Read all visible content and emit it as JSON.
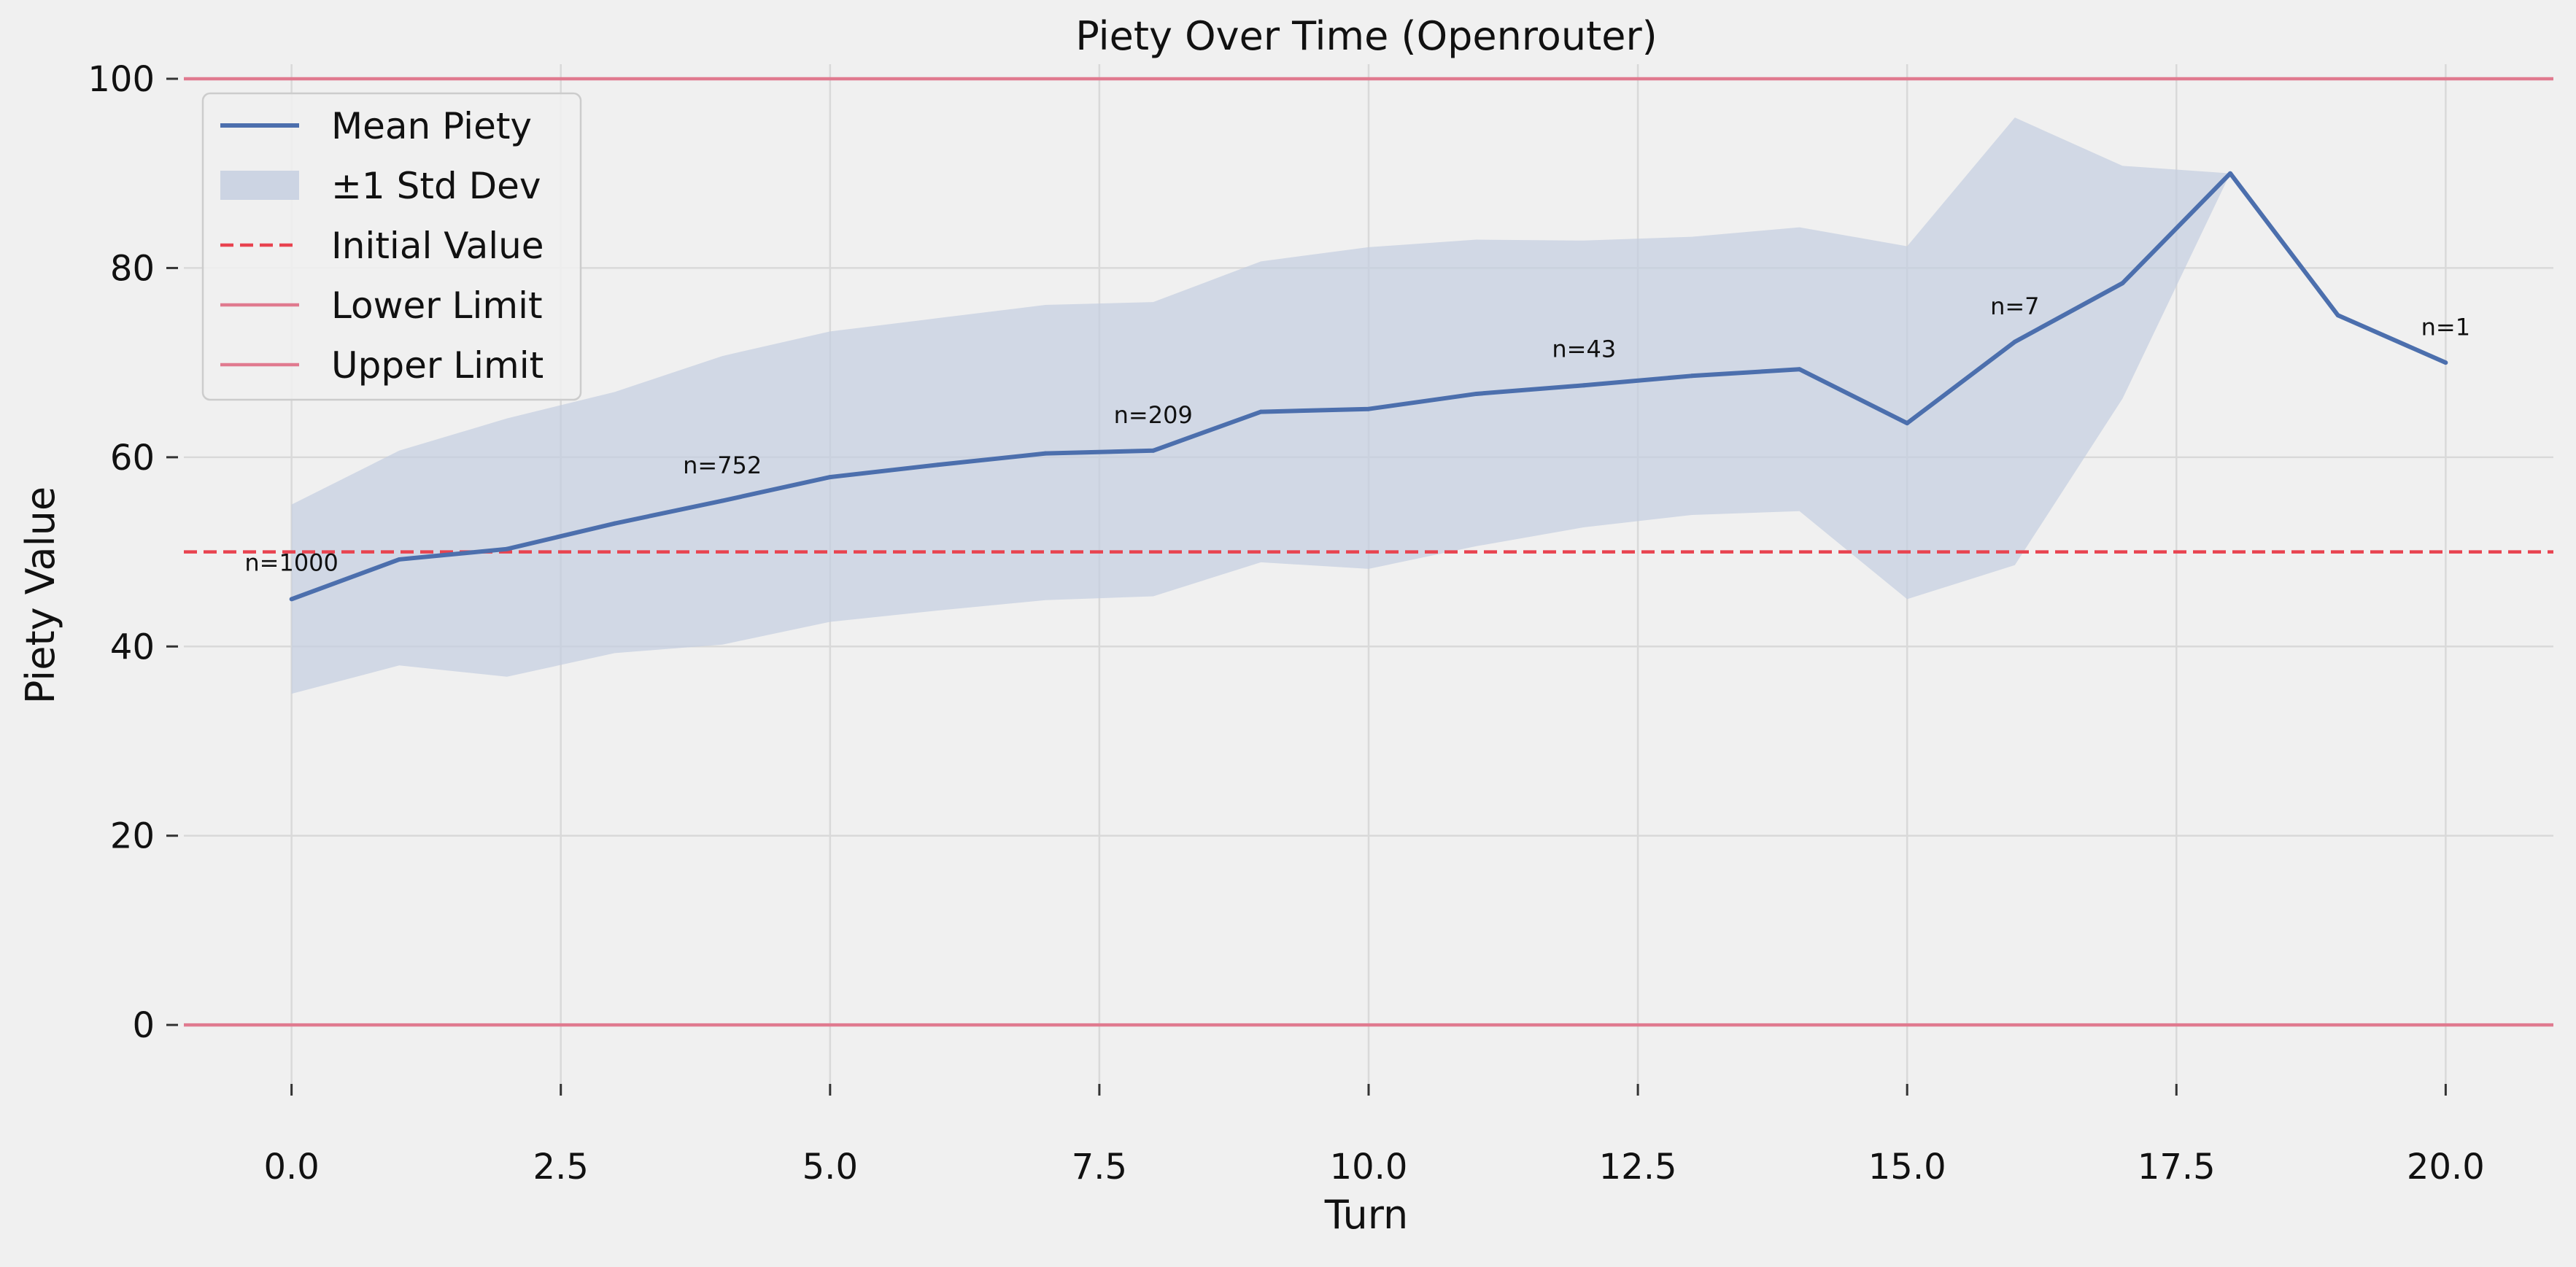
{
  "chart_data": {
    "type": "line",
    "title": "Piety Over Time (Openrouter)",
    "xlabel": "Turn",
    "ylabel": "Piety Value",
    "xlim": [
      -1,
      21
    ],
    "ylim": [
      -5,
      100
    ],
    "xticks": [
      0.0,
      2.5,
      5.0,
      7.5,
      10.0,
      12.5,
      15.0,
      17.5,
      20.0
    ],
    "xtick_labels": [
      "0.0",
      "2.5",
      "5.0",
      "7.5",
      "10.0",
      "12.5",
      "15.0",
      "17.5",
      "20.0"
    ],
    "yticks": [
      0,
      20,
      40,
      60,
      80,
      100
    ],
    "ytick_labels": [
      "0",
      "20",
      "40",
      "60",
      "80",
      "100"
    ],
    "grid": true,
    "legend_position": "top-left",
    "series": [
      {
        "name": "Mean Piety",
        "kind": "line",
        "color": "#4c6fad",
        "x": [
          0,
          1,
          2,
          3,
          4,
          5,
          6,
          7,
          8,
          9,
          10,
          11,
          12,
          13,
          14,
          15,
          16,
          17,
          18,
          19,
          20
        ],
        "y": [
          45.0,
          49.2,
          50.3,
          53.0,
          55.4,
          57.9,
          59.2,
          60.4,
          60.7,
          64.8,
          65.1,
          66.7,
          67.6,
          68.6,
          69.3,
          63.6,
          72.2,
          78.4,
          90.0,
          75.0,
          70.0
        ]
      },
      {
        "name": "±1 Std Dev",
        "kind": "band",
        "color": "#c3cde0",
        "x": [
          0,
          1,
          2,
          3,
          4,
          5,
          6,
          7,
          8,
          9,
          10,
          11,
          12,
          13,
          14,
          15,
          16,
          17,
          18
        ],
        "lower": [
          35.0,
          38.0,
          36.8,
          39.3,
          40.2,
          42.6,
          43.8,
          44.9,
          45.3,
          48.9,
          48.2,
          50.6,
          52.6,
          53.9,
          54.3,
          45.0,
          48.6,
          66.2,
          90.0
        ],
        "upper": [
          55.0,
          60.7,
          64.1,
          66.9,
          70.7,
          73.3,
          74.7,
          76.1,
          76.4,
          80.7,
          82.2,
          83.0,
          82.9,
          83.3,
          84.3,
          82.3,
          95.9,
          90.8,
          90.0
        ]
      },
      {
        "name": "Initial Value",
        "kind": "hline",
        "color": "#e8434f",
        "style": "dashed",
        "y": 50
      },
      {
        "name": "Lower Limit",
        "kind": "hline",
        "color": "#e07a8f",
        "style": "solid",
        "y": 0
      },
      {
        "name": "Upper Limit",
        "kind": "hline",
        "color": "#e07a8f",
        "style": "solid",
        "y": 100
      }
    ],
    "annotations": [
      {
        "text": "n=1000",
        "x": 0,
        "y": 48.0
      },
      {
        "text": "n=752",
        "x": 4,
        "y": 58.3
      },
      {
        "text": "n=209",
        "x": 8,
        "y": 63.6
      },
      {
        "text": "n=43",
        "x": 12,
        "y": 70.6
      },
      {
        "text": "n=7",
        "x": 16,
        "y": 75.1
      },
      {
        "text": "n=1",
        "x": 20,
        "y": 72.9
      }
    ]
  }
}
